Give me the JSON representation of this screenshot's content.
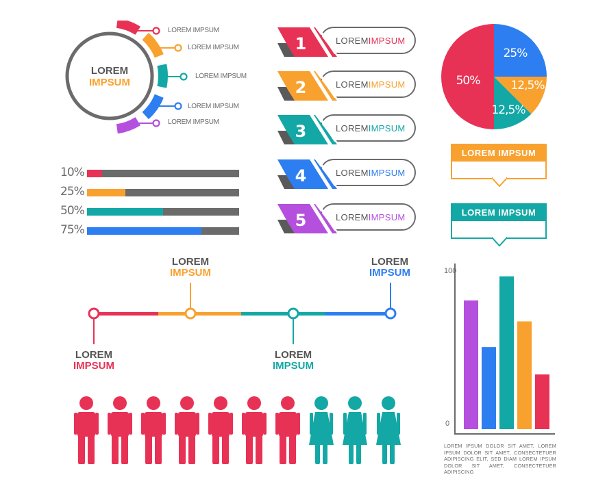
{
  "colors": {
    "red": "#e83255",
    "orange": "#f9a12e",
    "teal": "#13a8a5",
    "blue": "#2d7ef0",
    "purple": "#b44fde",
    "gray": "#6b6b6b"
  },
  "ring": {
    "title_line1": "LOREM",
    "title_line2": "IMPSUM",
    "labels": [
      "LOREM IMPSUM",
      "LOREM IMPSUM",
      "LOREM IMPSUM",
      "LOREM IMPSUM",
      "LOREM IMPSUM"
    ]
  },
  "steps": [
    {
      "number": "1",
      "text_a": "LOREM",
      "text_b": "IMPSUM",
      "color": "#e83255"
    },
    {
      "number": "2",
      "text_a": "LOREM",
      "text_b": "IMPSUM",
      "color": "#f9a12e"
    },
    {
      "number": "3",
      "text_a": "LOREM",
      "text_b": "IMPSUM",
      "color": "#13a8a5"
    },
    {
      "number": "4",
      "text_a": "LOREM",
      "text_b": "IMPSUM",
      "color": "#2d7ef0"
    },
    {
      "number": "5",
      "text_a": "LOREM",
      "text_b": "IMPSUM",
      "color": "#b44fde"
    }
  ],
  "progress": [
    {
      "label": "10%",
      "value": 0.1,
      "color": "#e83255"
    },
    {
      "label": "25%",
      "value": 0.25,
      "color": "#f9a12e"
    },
    {
      "label": "50%",
      "value": 0.5,
      "color": "#13a8a5"
    },
    {
      "label": "75%",
      "value": 0.75,
      "color": "#2d7ef0"
    }
  ],
  "callouts": [
    {
      "text": "LOREM IMPSUM",
      "color": "#f9a12e"
    },
    {
      "text": "LOREM IMPSUM",
      "color": "#13a8a5"
    }
  ],
  "timeline": [
    {
      "line1": "LOREM",
      "line2": "IMPSUM",
      "color": "#e83255"
    },
    {
      "line1": "LOREM",
      "line2": "IMPSUM",
      "color": "#f9a12e"
    },
    {
      "line1": "LOREM",
      "line2": "IMPSUM",
      "color": "#13a8a5"
    },
    {
      "line1": "LOREM",
      "line2": "IMPSUM",
      "color": "#2d7ef0"
    }
  ],
  "people": {
    "male_count": 7,
    "female_count": 3,
    "male_color": "#e83255",
    "female_color": "#13a8a5",
    "male_icon": "male-person-icon",
    "female_icon": "female-person-icon"
  },
  "bar_note": "LOREM IPSUM DOLOR SIT AMET, LOREM IPSUM DOLOR SIT AMET, CONSECTETUER ADIPISCING ELIT, SED DIAM LOREM IPSUM DOLOR SIT AMET, CONSECTETUER ADIPISCING",
  "chart_data": [
    {
      "type": "pie",
      "labels": [
        "50%",
        "25%",
        "12,5%",
        "12,5%"
      ],
      "values": [
        50,
        25,
        12.5,
        12.5
      ],
      "colors": [
        "#e83255",
        "#2d7ef0",
        "#f9a12e",
        "#13a8a5"
      ]
    },
    {
      "type": "bar",
      "categories": [
        "",
        "",
        "",
        "",
        ""
      ],
      "values": [
        80,
        51,
        95,
        67,
        34
      ],
      "colors": [
        "#b44fde",
        "#2d7ef0",
        "#13a8a5",
        "#f9a12e",
        "#e83255"
      ],
      "ylim": [
        0,
        100
      ],
      "ytick_labels": [
        "0",
        "100"
      ]
    }
  ]
}
